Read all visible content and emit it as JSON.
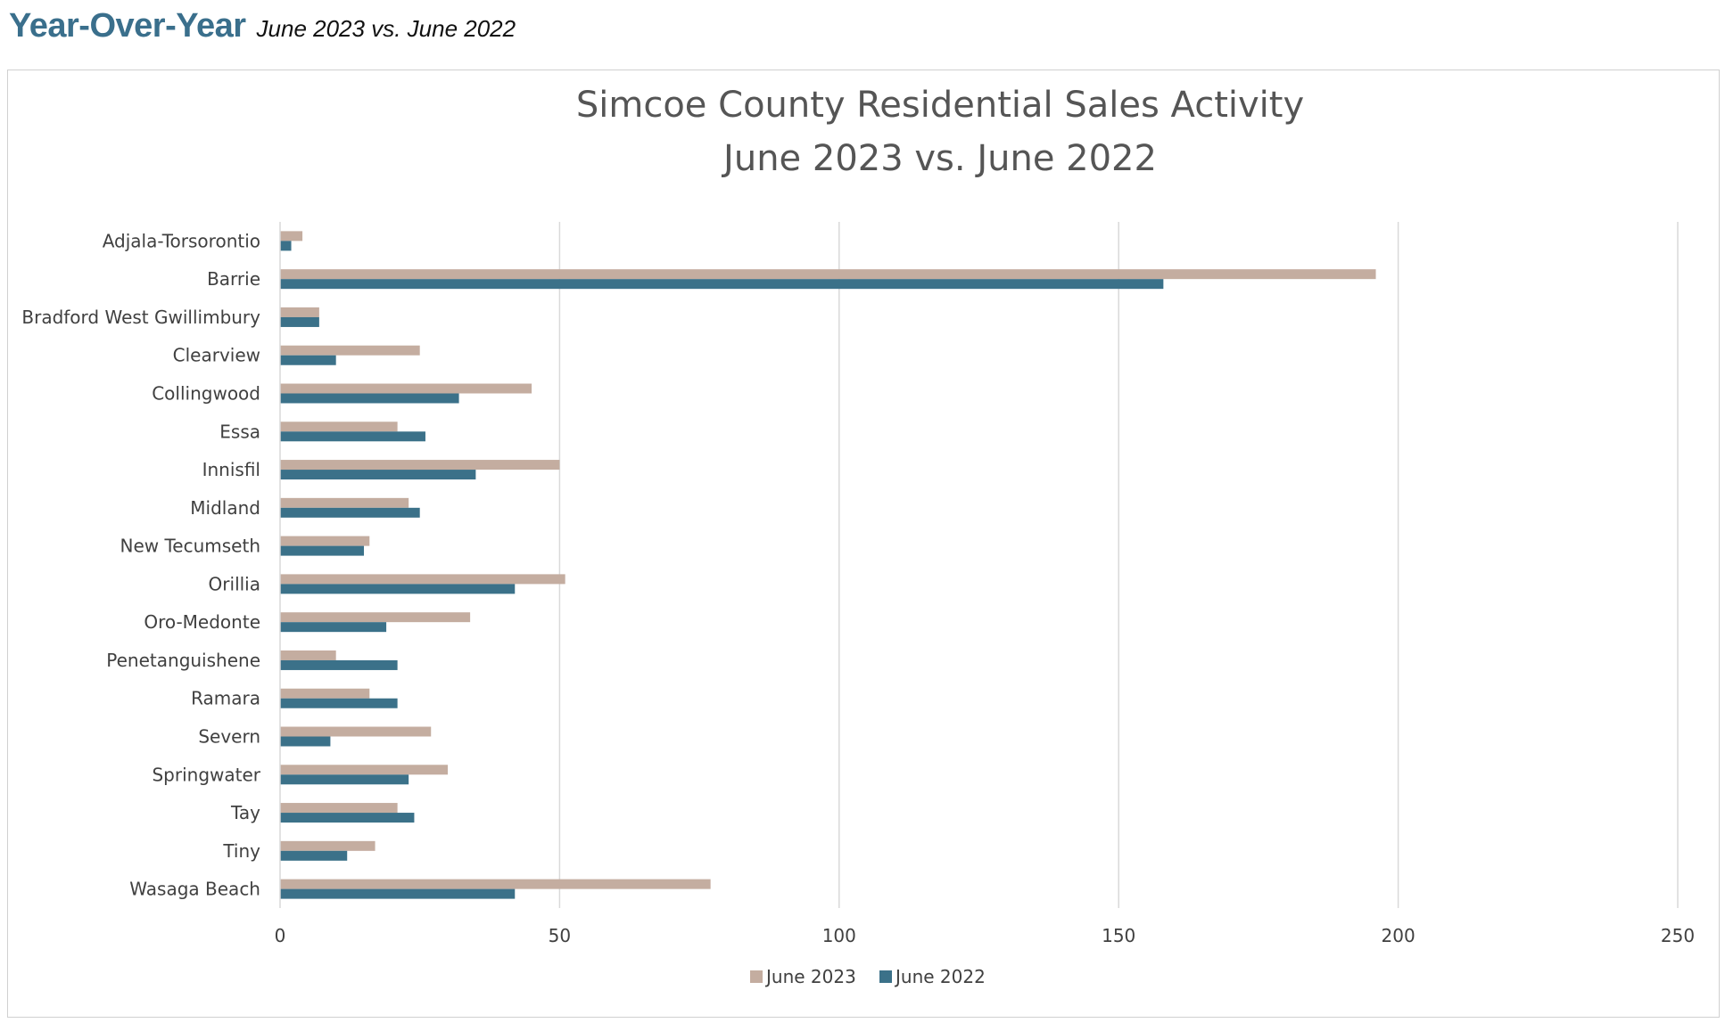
{
  "header": {
    "title": "Year-Over-Year",
    "subtitle": "June 2023 vs. June 2022"
  },
  "colors": {
    "header_title": "#3a6f8c",
    "series_2023": "#c4ada0",
    "series_2022": "#3b7189",
    "gridline": "#d9d9d9",
    "axis_text": "#404040"
  },
  "chart_data": {
    "type": "bar",
    "orientation": "horizontal",
    "title": [
      "Simcoe County Residential Sales Activity",
      "June 2023 vs. June 2022"
    ],
    "categories": [
      "Adjala-Torsorontio",
      "Barrie",
      "Bradford West Gwillimbury",
      "Clearview",
      "Collingwood",
      "Essa",
      "Innisfil",
      "Midland",
      "New Tecumseth",
      "Orillia",
      "Oro-Medonte",
      "Penetanguishene",
      "Ramara",
      "Severn",
      "Springwater",
      "Tay",
      "Tiny",
      "Wasaga Beach"
    ],
    "series": [
      {
        "name": "June 2023",
        "values": [
          4,
          196,
          7,
          25,
          45,
          21,
          50,
          23,
          16,
          51,
          34,
          10,
          16,
          27,
          30,
          21,
          17,
          77
        ]
      },
      {
        "name": "June 2022",
        "values": [
          2,
          158,
          7,
          10,
          32,
          26,
          35,
          25,
          15,
          42,
          19,
          21,
          21,
          9,
          23,
          24,
          12,
          42
        ]
      }
    ],
    "xlim": [
      0,
      250
    ],
    "xticks": [
      0,
      50,
      100,
      150,
      200,
      250
    ],
    "grid": true,
    "legend_position": "bottom"
  }
}
